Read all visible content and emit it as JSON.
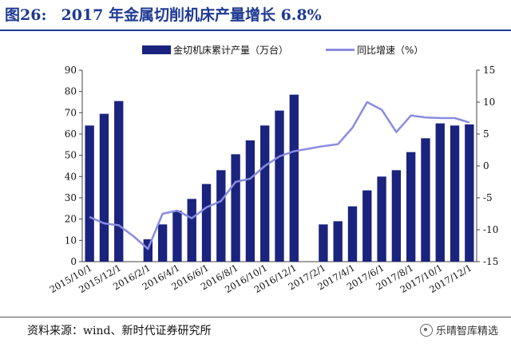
{
  "title": {
    "number": "图26:",
    "text": "2017 年金属切削机床产量增长 6.8%"
  },
  "legend": {
    "bar_label": "金切机床累计产量（万台）",
    "line_label": "同比增速（%）"
  },
  "source": "资料来源：wind、新时代证券研究所",
  "watermark": "乐晴智库精选",
  "colors": {
    "bar": "#1a237e",
    "line": "#8a8ce0",
    "title": "#1f3a93"
  },
  "chart_data": {
    "type": "bar",
    "categories": [
      "2015/10/1",
      "2015/11/1",
      "2015/12/1",
      "2016/1/1",
      "2016/2/1",
      "2016/3/1",
      "2016/4/1",
      "2016/5/1",
      "2016/6/1",
      "2016/7/1",
      "2016/8/1",
      "2016/9/1",
      "2016/10/1",
      "2016/11/1",
      "2016/12/1",
      "2017/1/1",
      "2017/2/1",
      "2017/3/1",
      "2017/4/1",
      "2017/5/1",
      "2017/6/1",
      "2017/7/1",
      "2017/8/1",
      "2017/9/1",
      "2017/10/1",
      "2017/11/1",
      "2017/12/1"
    ],
    "x_tick_labels": [
      "2015/10/1",
      "2015/12/1",
      "2016/2/1",
      "2016/4/1",
      "2016/6/1",
      "2016/8/1",
      "2016/10/1",
      "2016/12/1",
      "2017/2/1",
      "2017/4/1",
      "2017/6/1",
      "2017/8/1",
      "2017/10/1",
      "2017/12/1"
    ],
    "series": [
      {
        "name": "金切机床累计产量（万台）",
        "type": "bar",
        "axis": "left",
        "values": [
          64,
          69.5,
          75.5,
          null,
          10.5,
          17.5,
          24,
          29.5,
          36.5,
          43,
          50.5,
          57,
          64,
          71,
          78.5,
          null,
          17.5,
          19,
          26,
          33.5,
          40,
          43,
          51.5,
          58,
          65,
          64,
          64.5
        ]
      },
      {
        "name": "同比增速（%）",
        "type": "line",
        "axis": "right",
        "values": [
          -8,
          -9,
          -9.3,
          -11,
          -13,
          -7.5,
          -7,
          -8.2,
          -6.5,
          -5.5,
          -2.5,
          -2,
          0,
          1.5,
          2.3,
          2.7,
          3.1,
          3.4,
          6,
          10,
          8.8,
          5.3,
          7.9,
          7.6,
          7.5,
          7.5,
          6.8
        ]
      }
    ],
    "y_left": {
      "ticks": [
        "0",
        "10",
        "20",
        "30",
        "40",
        "50",
        "60",
        "70",
        "80",
        "90"
      ],
      "ylim": [
        0,
        90
      ]
    },
    "y_right": {
      "ticks": [
        "-15",
        "-10",
        "-5",
        "0",
        "5",
        "10",
        "15"
      ],
      "ylim": [
        -15,
        15
      ]
    },
    "grid": false,
    "legend_position": "top"
  }
}
